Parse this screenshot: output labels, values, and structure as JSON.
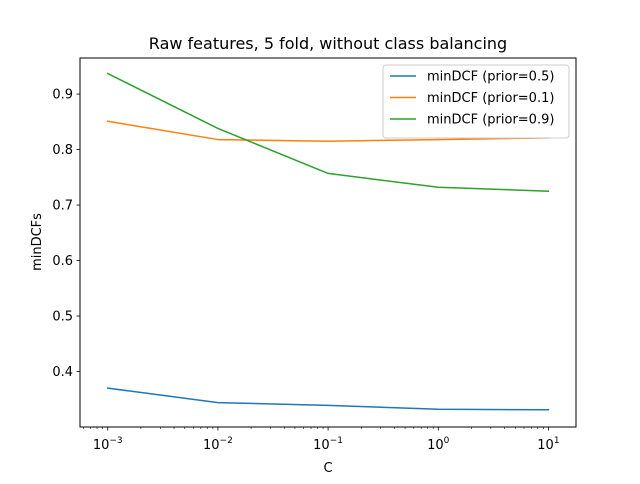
{
  "chart_data": {
    "type": "line",
    "title": "Raw features, 5 fold, without class balancing",
    "xlabel": "C",
    "ylabel": "minDCFs",
    "x_scale": "log",
    "x": [
      0.001,
      0.01,
      0.1,
      1,
      10
    ],
    "xlim": [
      0.00056,
      17.8
    ],
    "ylim": [
      0.3,
      0.965
    ],
    "x_ticks": [
      {
        "value": 0.001,
        "base": "10",
        "exp": "−3"
      },
      {
        "value": 0.01,
        "base": "10",
        "exp": "−2"
      },
      {
        "value": 0.1,
        "base": "10",
        "exp": "−1"
      },
      {
        "value": 1,
        "base": "10",
        "exp": "0"
      },
      {
        "value": 10,
        "base": "10",
        "exp": "1"
      }
    ],
    "y_ticks": [
      {
        "value": 0.4,
        "label": "0.4"
      },
      {
        "value": 0.5,
        "label": "0.5"
      },
      {
        "value": 0.6,
        "label": "0.6"
      },
      {
        "value": 0.7,
        "label": "0.7"
      },
      {
        "value": 0.8,
        "label": "0.8"
      },
      {
        "value": 0.9,
        "label": "0.9"
      }
    ],
    "grid": false,
    "legend_position": "top-right",
    "series": [
      {
        "name": "minDCF (prior=0.5)",
        "color": "#1f77b4",
        "values": [
          0.37,
          0.344,
          0.339,
          0.332,
          0.331
        ]
      },
      {
        "name": "minDCF (prior=0.1)",
        "color": "#ff7f0e",
        "values": [
          0.851,
          0.818,
          0.815,
          0.818,
          0.821
        ]
      },
      {
        "name": "minDCF (prior=0.9)",
        "color": "#2ca02c",
        "values": [
          0.937,
          0.838,
          0.757,
          0.732,
          0.725
        ]
      }
    ]
  }
}
